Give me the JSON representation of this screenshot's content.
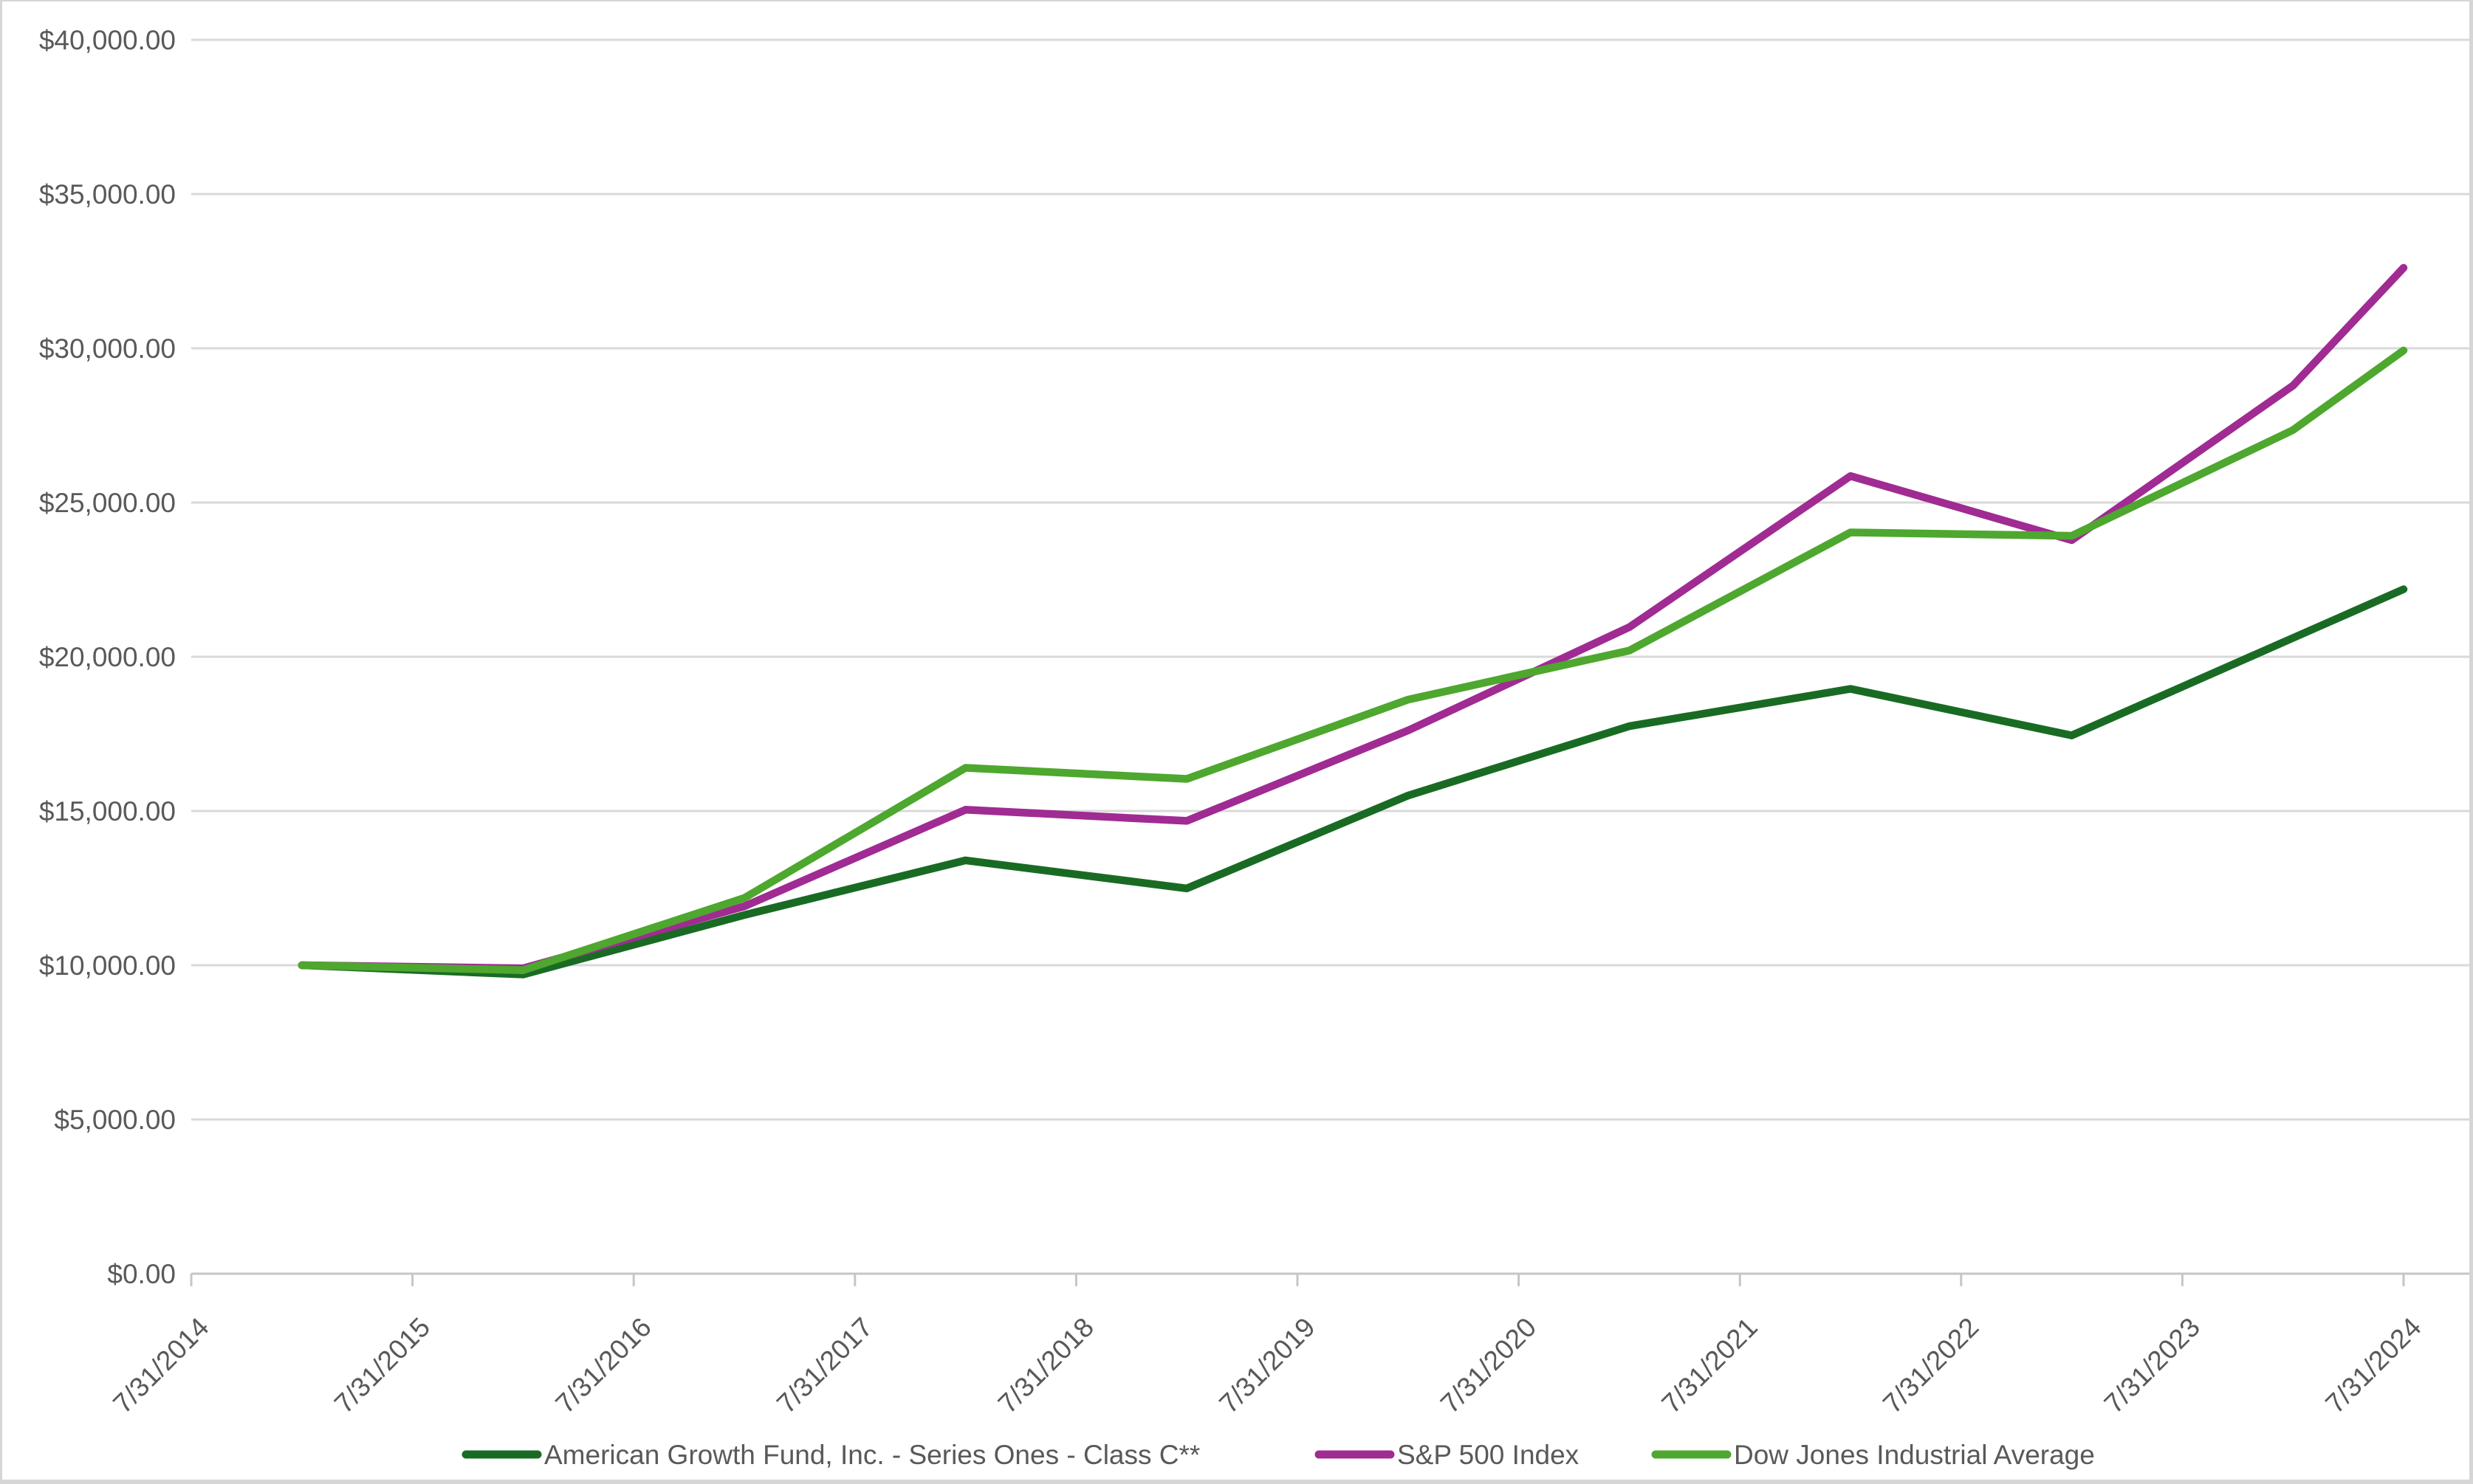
{
  "chart_data": {
    "type": "line",
    "title": "",
    "x_axis": {
      "tick_labels": [
        "7/31/2014",
        "7/31/2015",
        "7/31/2016",
        "7/31/2017",
        "7/31/2018",
        "7/31/2019",
        "7/31/2020",
        "7/31/2021",
        "7/31/2022",
        "7/31/2023",
        "7/31/2024"
      ],
      "range_years": [
        0,
        10
      ],
      "label_rotation_deg": -45
    },
    "y_axis": {
      "tick_labels": [
        "$0.00",
        "$5,000.00",
        "$10,000.00",
        "$15,000.00",
        "$20,000.00",
        "$25,000.00",
        "$30,000.00",
        "$35,000.00",
        "$40,000.00"
      ],
      "min": 0,
      "max": 40000,
      "step": 5000
    },
    "x_years_since_first_tick": [
      0.5,
      1.5,
      2.5,
      3.5,
      4.5,
      5.5,
      6.5,
      7.5,
      8.5,
      9.5,
      10
    ],
    "series": [
      {
        "name": "American Growth Fund, Inc. - Series Ones - Class C**",
        "color": "#196B24",
        "values": [
          10000,
          9700,
          11630,
          13400,
          12490,
          15500,
          17750,
          18960,
          17450,
          20610,
          22190
        ]
      },
      {
        "name": "S&P 500 Index",
        "color": "#A02B93",
        "values": [
          10000,
          9900,
          11910,
          15040,
          14680,
          17610,
          20960,
          25860,
          23780,
          28790,
          32610
        ]
      },
      {
        "name": "Dow Jones Industrial Average",
        "color": "#4EA72E",
        "values": [
          10000,
          9840,
          12180,
          16400,
          16040,
          18610,
          20200,
          24030,
          23920,
          27350,
          29930
        ]
      }
    ],
    "legend_position": "bottom",
    "grid": "horizontal",
    "colors": {
      "gridline": "#D9D9D9",
      "axis": "#C6C6C6",
      "tick": "#C6C6C6",
      "label": "#595959",
      "background": "#FFFFFF",
      "frame": "#D6D6D6"
    }
  }
}
